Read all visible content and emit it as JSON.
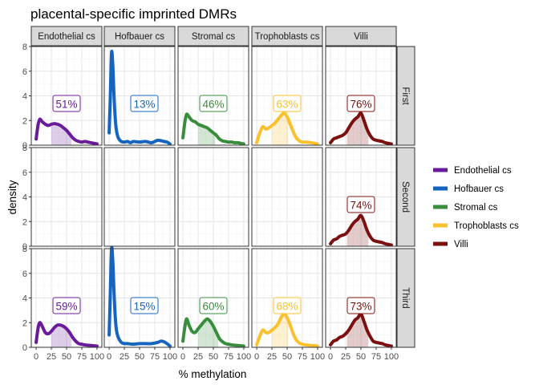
{
  "chart_data": {
    "type": "area",
    "title": "placental-specific imprinted DMRs",
    "xlabel": "% methylation",
    "ylabel": "density",
    "xlim": [
      -8,
      108
    ],
    "ylim": [
      0,
      8
    ],
    "x_ticks": [
      0,
      25,
      50,
      75,
      100
    ],
    "x_tick_labels": [
      "0",
      "25",
      "50",
      "75",
      "100"
    ],
    "y_ticks": [
      0,
      2,
      4,
      6,
      8
    ],
    "y_tick_labels": [
      "0",
      "2",
      "4",
      "6",
      "8"
    ],
    "grid": true,
    "legend_position": "right",
    "columns": [
      "Endothelial cs",
      "Hofbauer cs",
      "Stromal cs",
      "Trophoblasts cs",
      "Villi"
    ],
    "rows": [
      "First",
      "Second",
      "Third"
    ],
    "legend": [
      {
        "name": "Endothelial cs",
        "color": "#6a1b9a"
      },
      {
        "name": "Hofbauer cs",
        "color": "#1565c0"
      },
      {
        "name": "Stromal cs",
        "color": "#388e3c"
      },
      {
        "name": "Trophoblasts cs",
        "color": "#fbc02d"
      },
      {
        "name": "Villi",
        "color": "#7b1010"
      }
    ],
    "panels": [
      {
        "row": "First",
        "col": "Endothelial cs",
        "label": "51%",
        "shade": [
          25,
          58
        ],
        "x": [
          0,
          3,
          6,
          10,
          15,
          20,
          25,
          30,
          35,
          40,
          45,
          50,
          55,
          60,
          65,
          70,
          75,
          80,
          85,
          90,
          95,
          100
        ],
        "y": [
          0.5,
          1.6,
          2.1,
          1.9,
          1.7,
          1.6,
          1.7,
          1.75,
          1.7,
          1.6,
          1.4,
          1.2,
          0.9,
          0.6,
          0.4,
          0.3,
          0.25,
          0.3,
          0.25,
          0.2,
          0.15,
          0.1
        ]
      },
      {
        "row": "First",
        "col": "Hofbauer cs",
        "label": "13%",
        "shade": null,
        "x": [
          0,
          2,
          4,
          6,
          8,
          10,
          12,
          15,
          20,
          25,
          30,
          35,
          40,
          50,
          60,
          70,
          80,
          90,
          95,
          100
        ],
        "y": [
          1.0,
          4.0,
          7.5,
          6.5,
          4.0,
          2.2,
          1.2,
          0.6,
          0.3,
          0.25,
          0.3,
          0.2,
          0.3,
          0.25,
          0.3,
          0.2,
          0.4,
          0.3,
          0.25,
          0.1
        ]
      },
      {
        "row": "First",
        "col": "Stromal cs",
        "label": "46%",
        "shade": [
          25,
          53
        ],
        "x": [
          0,
          3,
          6,
          10,
          15,
          20,
          25,
          30,
          35,
          40,
          45,
          50,
          55,
          60,
          65,
          70,
          75,
          80,
          85,
          90,
          95,
          100
        ],
        "y": [
          0.6,
          1.8,
          2.5,
          2.3,
          2.0,
          1.9,
          1.7,
          1.6,
          1.5,
          1.4,
          1.2,
          1.0,
          0.8,
          0.5,
          0.35,
          0.3,
          0.25,
          0.25,
          0.2,
          0.2,
          0.15,
          0.1
        ]
      },
      {
        "row": "First",
        "col": "Trophoblasts cs",
        "label": "63%",
        "shade": [
          25,
          52
        ],
        "x": [
          0,
          5,
          10,
          15,
          20,
          25,
          30,
          35,
          40,
          45,
          50,
          55,
          60,
          65,
          70,
          75,
          80,
          90,
          100
        ],
        "y": [
          0.2,
          1.0,
          1.5,
          1.3,
          1.4,
          1.6,
          1.8,
          2.1,
          2.4,
          2.6,
          2.3,
          1.7,
          1.1,
          0.6,
          0.35,
          0.25,
          0.25,
          0.2,
          0.1
        ]
      },
      {
        "row": "First",
        "col": "Villi",
        "label": "76%",
        "shade": [
          27,
          62
        ],
        "x": [
          0,
          5,
          10,
          15,
          20,
          25,
          30,
          35,
          40,
          45,
          50,
          55,
          60,
          65,
          70,
          75,
          80,
          85,
          90,
          100
        ],
        "y": [
          0.2,
          0.5,
          0.6,
          0.7,
          0.8,
          1.0,
          1.4,
          1.8,
          2.1,
          2.3,
          2.6,
          2.0,
          1.3,
          0.8,
          0.5,
          0.4,
          0.35,
          0.3,
          0.2,
          0.1
        ]
      },
      {
        "row": "Second",
        "col": "Villi",
        "label": "74%",
        "shade": [
          27,
          62
        ],
        "x": [
          0,
          5,
          10,
          15,
          20,
          25,
          30,
          35,
          40,
          45,
          50,
          55,
          60,
          65,
          70,
          75,
          80,
          85,
          90,
          100
        ],
        "y": [
          0.2,
          0.5,
          0.6,
          0.8,
          0.9,
          1.0,
          1.3,
          1.7,
          2.0,
          2.2,
          2.5,
          2.0,
          1.3,
          0.8,
          0.5,
          0.4,
          0.35,
          0.3,
          0.2,
          0.1
        ]
      },
      {
        "row": "Third",
        "col": "Endothelial cs",
        "label": "59%",
        "shade": [
          25,
          58
        ],
        "x": [
          0,
          3,
          6,
          10,
          15,
          20,
          25,
          30,
          35,
          40,
          45,
          50,
          55,
          60,
          65,
          70,
          75,
          80,
          90,
          100
        ],
        "y": [
          0.4,
          1.5,
          2.0,
          1.7,
          1.2,
          1.1,
          1.3,
          1.6,
          1.8,
          1.8,
          1.7,
          1.5,
          1.2,
          0.8,
          0.5,
          0.3,
          0.25,
          0.2,
          0.15,
          0.1
        ]
      },
      {
        "row": "Third",
        "col": "Hofbauer cs",
        "label": "15%",
        "shade": null,
        "x": [
          0,
          2,
          4,
          6,
          8,
          10,
          12,
          15,
          20,
          25,
          30,
          40,
          50,
          60,
          70,
          80,
          85,
          90,
          95,
          100
        ],
        "y": [
          1.0,
          4.5,
          8.0,
          7.0,
          4.5,
          2.5,
          1.4,
          0.8,
          0.4,
          0.3,
          0.3,
          0.25,
          0.3,
          0.3,
          0.3,
          0.4,
          0.5,
          0.45,
          0.3,
          0.1
        ]
      },
      {
        "row": "Third",
        "col": "Stromal cs",
        "label": "60%",
        "shade": [
          25,
          58
        ],
        "x": [
          0,
          3,
          6,
          10,
          15,
          20,
          25,
          30,
          35,
          40,
          45,
          50,
          55,
          60,
          65,
          70,
          75,
          80,
          90,
          100
        ],
        "y": [
          0.5,
          1.6,
          2.3,
          1.8,
          1.3,
          1.2,
          1.5,
          1.8,
          2.1,
          2.3,
          2.1,
          1.7,
          1.2,
          0.7,
          0.45,
          0.3,
          0.25,
          0.2,
          0.15,
          0.1
        ]
      },
      {
        "row": "Third",
        "col": "Trophoblasts cs",
        "label": "68%",
        "shade": [
          25,
          52
        ],
        "x": [
          0,
          5,
          10,
          15,
          20,
          25,
          30,
          35,
          40,
          45,
          50,
          55,
          60,
          65,
          70,
          75,
          80,
          90,
          100
        ],
        "y": [
          0.2,
          0.9,
          1.4,
          1.2,
          1.2,
          1.4,
          1.6,
          1.9,
          2.4,
          2.7,
          2.4,
          1.8,
          1.1,
          0.6,
          0.35,
          0.25,
          0.2,
          0.15,
          0.1
        ]
      },
      {
        "row": "Third",
        "col": "Villi",
        "label": "73%",
        "shade": [
          27,
          62
        ],
        "x": [
          0,
          5,
          10,
          15,
          20,
          25,
          30,
          35,
          40,
          45,
          50,
          55,
          60,
          65,
          70,
          75,
          80,
          85,
          90,
          100
        ],
        "y": [
          0.2,
          0.5,
          0.6,
          0.8,
          0.9,
          1.1,
          1.4,
          1.8,
          2.2,
          2.4,
          2.7,
          2.1,
          1.4,
          0.9,
          0.5,
          0.4,
          0.35,
          0.3,
          0.2,
          0.1
        ]
      }
    ]
  }
}
